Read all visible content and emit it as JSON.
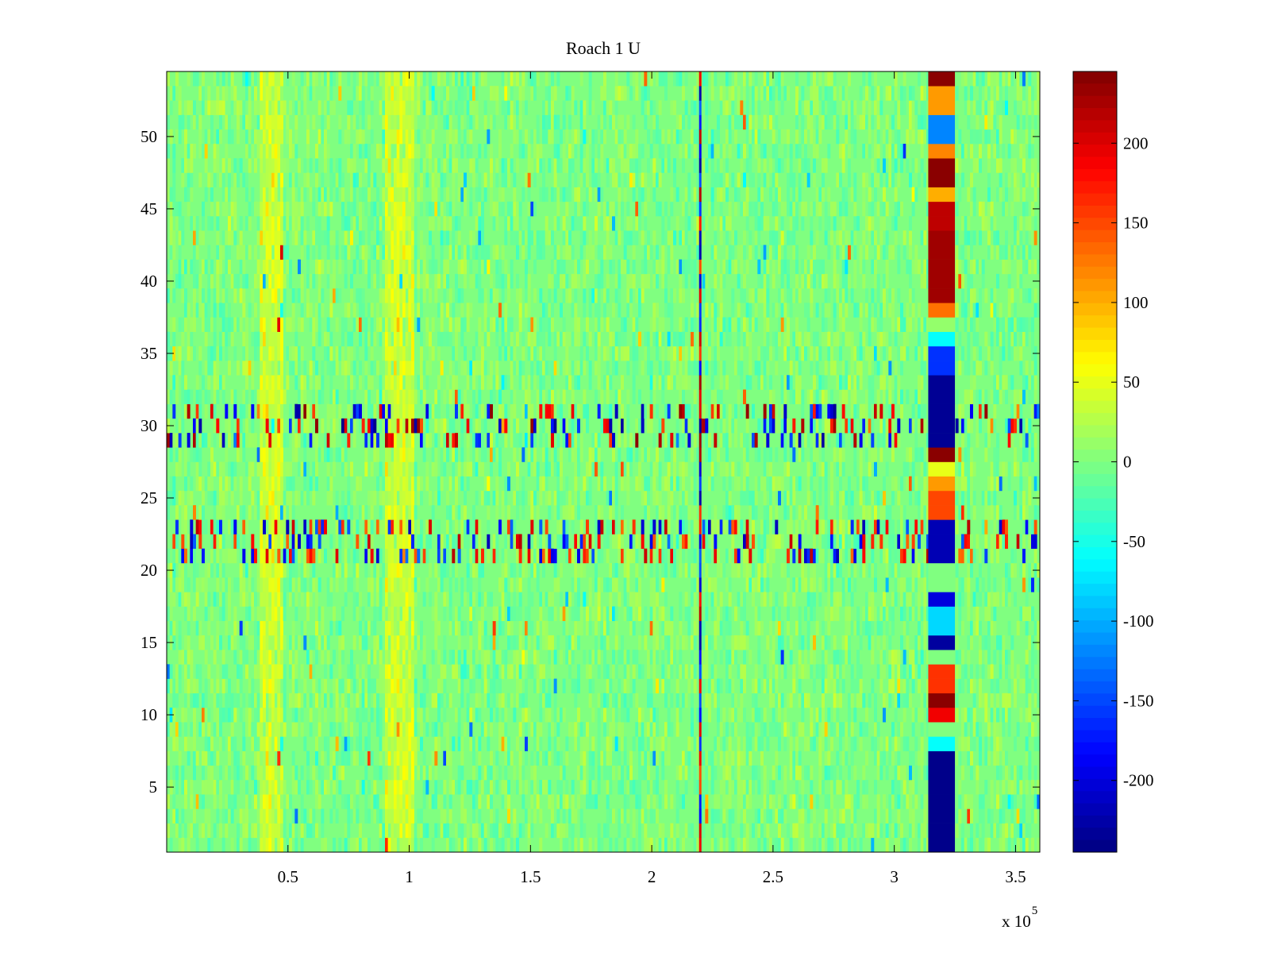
{
  "chart_data": {
    "type": "heatmap",
    "title": "Roach 1 U",
    "xlabel": "",
    "ylabel": "",
    "x_multiplier": {
      "prefix": "x 10",
      "exponent": "5"
    },
    "xlim": [
      0,
      360000
    ],
    "ylim": [
      0.5,
      54.5
    ],
    "x_ticks": [
      {
        "value": 0.5,
        "label": "0.5"
      },
      {
        "value": 1,
        "label": "1"
      },
      {
        "value": 1.5,
        "label": "1.5"
      },
      {
        "value": 2,
        "label": "2"
      },
      {
        "value": 2.5,
        "label": "2.5"
      },
      {
        "value": 3,
        "label": "3"
      },
      {
        "value": 3.5,
        "label": "3.5"
      }
    ],
    "y_ticks": [
      {
        "value": 5,
        "label": "5"
      },
      {
        "value": 10,
        "label": "10"
      },
      {
        "value": 15,
        "label": "15"
      },
      {
        "value": 20,
        "label": "20"
      },
      {
        "value": 25,
        "label": "25"
      },
      {
        "value": 30,
        "label": "30"
      },
      {
        "value": 35,
        "label": "35"
      },
      {
        "value": 40,
        "label": "40"
      },
      {
        "value": 45,
        "label": "45"
      },
      {
        "value": 50,
        "label": "50"
      }
    ],
    "colormap": "jet",
    "clim": [
      -245,
      245
    ],
    "colorbar_ticks": [
      {
        "value": 200,
        "label": "200"
      },
      {
        "value": 150,
        "label": "150"
      },
      {
        "value": 100,
        "label": "100"
      },
      {
        "value": 50,
        "label": "50"
      },
      {
        "value": 0,
        "label": "0"
      },
      {
        "value": -50,
        "label": "-50"
      },
      {
        "value": -100,
        "label": "-100"
      },
      {
        "value": -150,
        "label": "-150"
      },
      {
        "value": -200,
        "label": "-200"
      }
    ],
    "background_value": 0,
    "features": {
      "noisy_channels": [
        {
          "channels": [
            29,
            30,
            31
          ],
          "amplitude": 240
        },
        {
          "channels": [
            21,
            22,
            23
          ],
          "amplitude": 220
        }
      ],
      "vertical_artifact": {
        "x": 220000,
        "amplitude": 230
      },
      "warm_bands": [
        {
          "x_range": [
            38000,
            48000
          ],
          "value": 45
        },
        {
          "x_range": [
            90000,
            102000
          ],
          "value": 45
        }
      ],
      "artifact_block": {
        "x_range": [
          314000,
          325000
        ],
        "channel_values": [
          {
            "channels": [
              1,
              7
            ],
            "value": -240
          },
          {
            "channels": [
              8,
              8
            ],
            "value": -60
          },
          {
            "channels": [
              9,
              9
            ],
            "value": 0
          },
          {
            "channels": [
              10,
              10
            ],
            "value": 190
          },
          {
            "channels": [
              11,
              11
            ],
            "value": 240
          },
          {
            "channels": [
              12,
              13
            ],
            "value": 160
          },
          {
            "channels": [
              14,
              14
            ],
            "value": 0
          },
          {
            "channels": [
              15,
              15
            ],
            "value": -230
          },
          {
            "channels": [
              16,
              17
            ],
            "value": -80
          },
          {
            "channels": [
              18,
              18
            ],
            "value": -200
          },
          {
            "channels": [
              19,
              20
            ],
            "value": 0
          },
          {
            "channels": [
              21,
              23
            ],
            "value": -220
          },
          {
            "channels": [
              24,
              25
            ],
            "value": 150
          },
          {
            "channels": [
              26,
              26
            ],
            "value": 110
          },
          {
            "channels": [
              27,
              27
            ],
            "value": 50
          },
          {
            "channels": [
              28,
              28
            ],
            "value": 240
          },
          {
            "channels": [
              29,
              33
            ],
            "value": -235
          },
          {
            "channels": [
              34,
              35
            ],
            "value": -160
          },
          {
            "channels": [
              36,
              36
            ],
            "value": -60
          },
          {
            "channels": [
              37,
              37
            ],
            "value": 10
          },
          {
            "channels": [
              38,
              38
            ],
            "value": 130
          },
          {
            "channels": [
              39,
              43
            ],
            "value": 230
          },
          {
            "channels": [
              44,
              45
            ],
            "value": 215
          },
          {
            "channels": [
              46,
              46
            ],
            "value": 100
          },
          {
            "channels": [
              47,
              48
            ],
            "value": 240
          },
          {
            "channels": [
              49,
              49
            ],
            "value": 120
          },
          {
            "channels": [
              50,
              51
            ],
            "value": -120
          },
          {
            "channels": [
              52,
              53
            ],
            "value": 110
          },
          {
            "channels": [
              54,
              54
            ],
            "value": 240
          }
        ]
      }
    }
  }
}
